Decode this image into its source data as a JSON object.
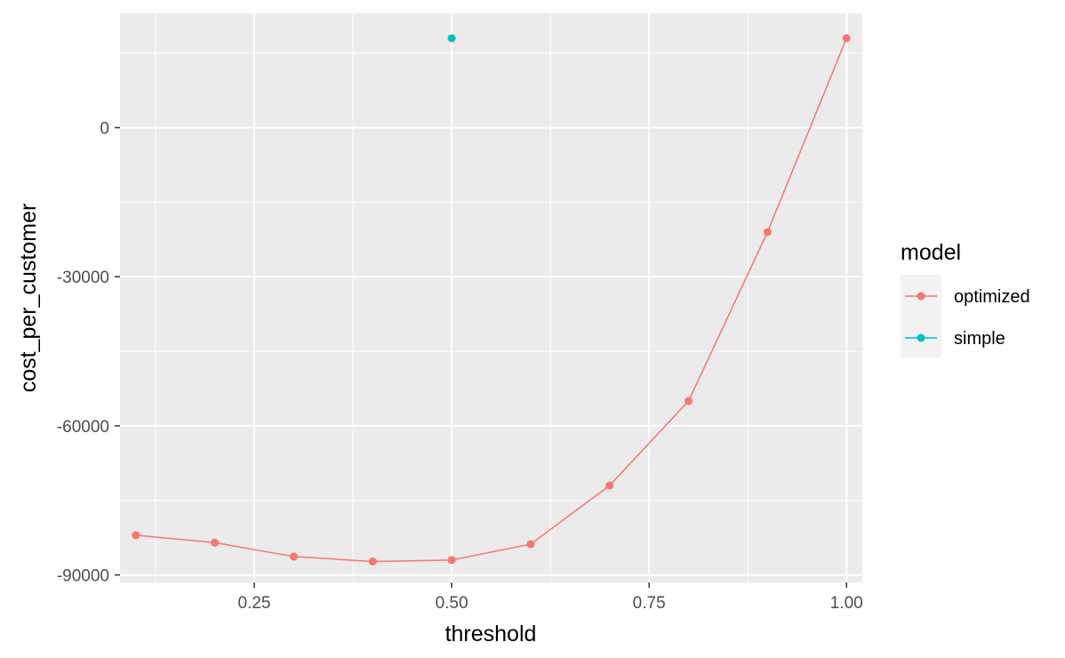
{
  "chart_data": {
    "type": "line",
    "xlabel": "threshold",
    "ylabel": "cost_per_customer",
    "xlim": [
      0.08,
      1.02
    ],
    "ylim": [
      -91500,
      23000
    ],
    "x_ticks": [
      0.25,
      0.5,
      0.75,
      1.0
    ],
    "x_tick_labels": [
      "0.25",
      "0.50",
      "0.75",
      "1.00"
    ],
    "y_ticks": [
      -90000,
      -60000,
      -30000,
      0
    ],
    "y_tick_labels": [
      "-90000",
      "-60000",
      "-30000",
      "0"
    ],
    "grid": true,
    "legend": {
      "title": "model",
      "position": "right"
    },
    "series": [
      {
        "name": "optimized",
        "color": "#F8766D",
        "x": [
          0.1,
          0.2,
          0.3,
          0.4,
          0.5,
          0.6,
          0.7,
          0.8,
          0.9,
          1.0
        ],
        "y": [
          -82000,
          -83500,
          -86300,
          -87300,
          -87000,
          -83800,
          -72000,
          -55000,
          -21000,
          18000
        ]
      },
      {
        "name": "simple",
        "color": "#00BFC4",
        "x": [
          0.5
        ],
        "y": [
          18000
        ]
      }
    ]
  }
}
